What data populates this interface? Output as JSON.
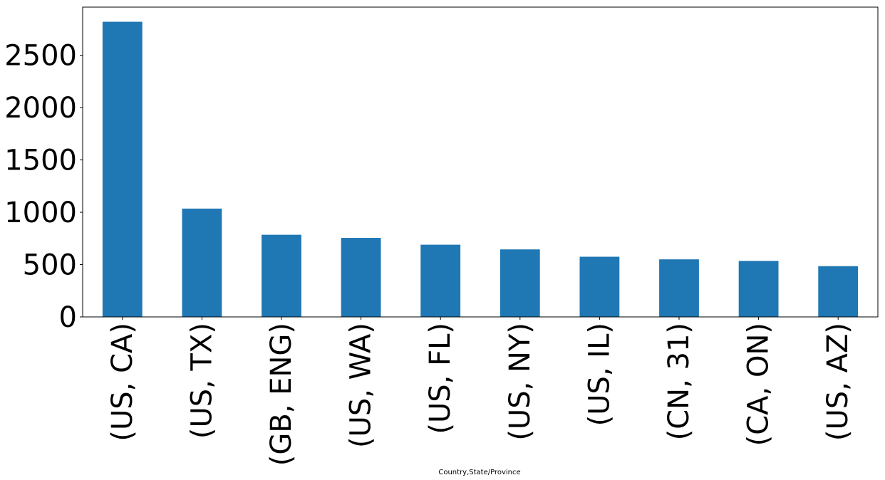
{
  "chart_data": {
    "type": "bar",
    "categories": [
      "(US, CA)",
      "(US, TX)",
      "(GB, ENG)",
      "(US, WA)",
      "(US, FL)",
      "(US, NY)",
      "(US, IL)",
      "(CN, 31)",
      "(CA, ON)",
      "(US, AZ)"
    ],
    "values": [
      2820,
      1035,
      785,
      755,
      690,
      645,
      575,
      550,
      535,
      485
    ],
    "title": "",
    "xlabel": "Country,State/Province",
    "ylabel": "",
    "ylim": [
      0,
      2960
    ],
    "yticks": [
      0,
      500,
      1000,
      1500,
      2000,
      2500
    ],
    "grid": false,
    "bar_color": "#1f77b4"
  }
}
